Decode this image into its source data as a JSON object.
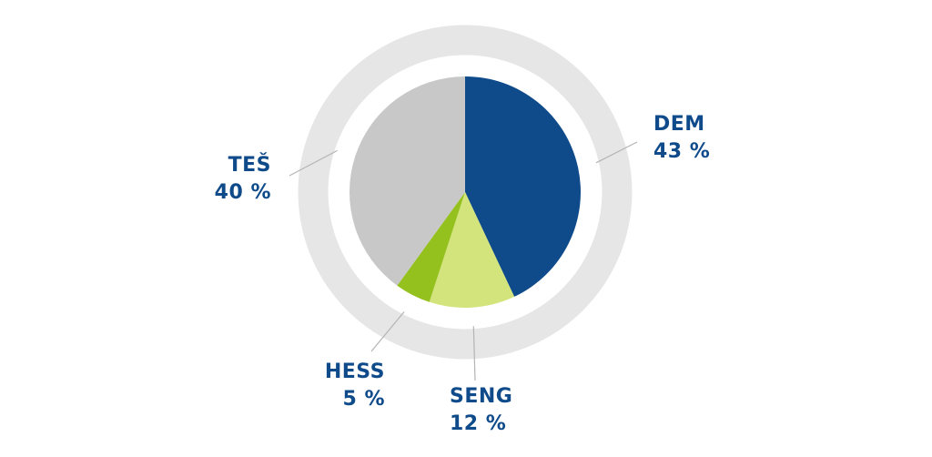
{
  "chart_data": {
    "type": "pie",
    "slices": [
      {
        "name": "DEM",
        "value": 43,
        "value_label": "43 %",
        "color": "#0f4b8a"
      },
      {
        "name": "SENG",
        "value": 12,
        "value_label": "12 %",
        "color": "#d3e47c"
      },
      {
        "name": "HESS",
        "value": 5,
        "value_label": "5 %",
        "color": "#95c11f"
      },
      {
        "name": "TEŠ",
        "value": 40,
        "value_label": "40 %",
        "color": "#c8c8c8"
      }
    ],
    "ring_color": "#e6e6e6",
    "leader_color": "#b4b4b4",
    "label_color": "#0f4b8a"
  }
}
